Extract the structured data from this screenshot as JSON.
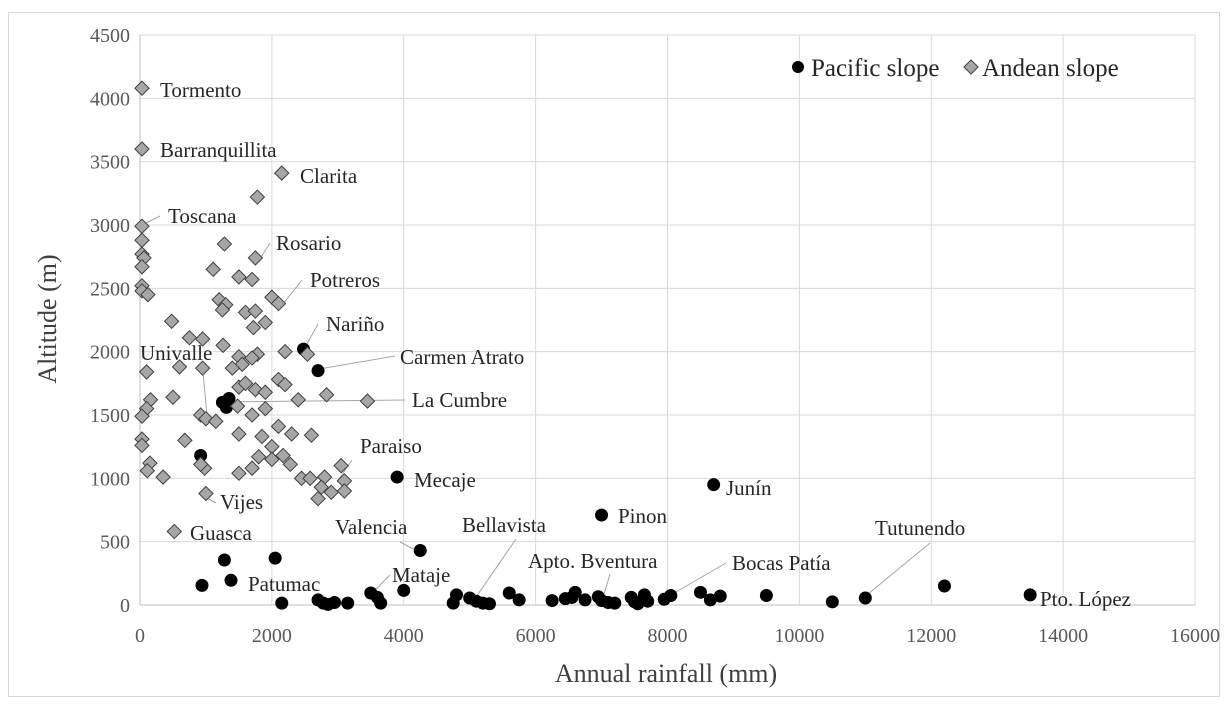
{
  "chart_data": {
    "type": "scatter",
    "xlabel": "Annual rainfall (mm)",
    "ylabel": "Altitude (m)",
    "xlim": [
      0,
      16000
    ],
    "ylim": [
      0,
      4500
    ],
    "x_ticks": [
      0,
      2000,
      4000,
      6000,
      8000,
      10000,
      12000,
      14000,
      16000
    ],
    "y_ticks": [
      0,
      500,
      1000,
      1500,
      2000,
      2500,
      3000,
      3500,
      4000,
      4500
    ],
    "grid": "vertical-and-horizontal",
    "legend_position": "top-right",
    "series": [
      {
        "name": "Pacific slope",
        "marker": "circle",
        "color": "#000000",
        "points": [
          [
            2480,
            2020
          ],
          [
            2700,
            1850
          ],
          [
            3900,
            1010
          ],
          [
            8700,
            950
          ],
          [
            7000,
            710
          ],
          [
            4250,
            430
          ],
          [
            1250,
            1600
          ],
          [
            1310,
            1560
          ],
          [
            1350,
            1630
          ],
          [
            920,
            1180
          ],
          [
            940,
            155
          ],
          [
            1280,
            355
          ],
          [
            1380,
            195
          ],
          [
            2050,
            370
          ],
          [
            2150,
            15
          ],
          [
            2700,
            40
          ],
          [
            2780,
            15
          ],
          [
            2850,
            5
          ],
          [
            2950,
            20
          ],
          [
            3150,
            15
          ],
          [
            3500,
            95
          ],
          [
            3600,
            60
          ],
          [
            3650,
            15
          ],
          [
            4000,
            115
          ],
          [
            4750,
            15
          ],
          [
            4800,
            80
          ],
          [
            5000,
            55
          ],
          [
            5100,
            30
          ],
          [
            5200,
            15
          ],
          [
            5300,
            10
          ],
          [
            5600,
            95
          ],
          [
            5750,
            40
          ],
          [
            6250,
            35
          ],
          [
            6450,
            50
          ],
          [
            6550,
            60
          ],
          [
            6600,
            100
          ],
          [
            6750,
            40
          ],
          [
            6950,
            65
          ],
          [
            7000,
            35
          ],
          [
            7100,
            20
          ],
          [
            7200,
            15
          ],
          [
            7450,
            60
          ],
          [
            7500,
            25
          ],
          [
            7550,
            10
          ],
          [
            7650,
            80
          ],
          [
            7700,
            30
          ],
          [
            7950,
            45
          ],
          [
            8050,
            75
          ],
          [
            8500,
            100
          ],
          [
            8650,
            40
          ],
          [
            8800,
            70
          ],
          [
            9500,
            75
          ],
          [
            10500,
            25
          ],
          [
            11000,
            55
          ],
          [
            12200,
            150
          ],
          [
            13500,
            80
          ]
        ]
      },
      {
        "name": "Andean slope",
        "marker": "diamond",
        "color": "#a6a6a6",
        "points": [
          [
            30,
            4080
          ],
          [
            30,
            3600
          ],
          [
            2150,
            3410
          ],
          [
            1780,
            3220
          ],
          [
            30,
            2990
          ],
          [
            30,
            2880
          ],
          [
            30,
            2770
          ],
          [
            60,
            2740
          ],
          [
            30,
            2670
          ],
          [
            30,
            2520
          ],
          [
            30,
            2480
          ],
          [
            120,
            2450
          ],
          [
            1280,
            2850
          ],
          [
            1750,
            2740
          ],
          [
            1110,
            2650
          ],
          [
            1500,
            2590
          ],
          [
            1700,
            2570
          ],
          [
            2000,
            2430
          ],
          [
            2100,
            2380
          ],
          [
            1200,
            2410
          ],
          [
            1300,
            2370
          ],
          [
            1250,
            2330
          ],
          [
            1600,
            2310
          ],
          [
            1750,
            2320
          ],
          [
            1900,
            2230
          ],
          [
            1720,
            2190
          ],
          [
            480,
            2240
          ],
          [
            750,
            2110
          ],
          [
            950,
            2100
          ],
          [
            1260,
            2050
          ],
          [
            1780,
            1980
          ],
          [
            2200,
            2000
          ],
          [
            2540,
            1980
          ],
          [
            1500,
            1960
          ],
          [
            1700,
            1950
          ],
          [
            1550,
            1900
          ],
          [
            100,
            1840
          ],
          [
            600,
            1880
          ],
          [
            950,
            1870
          ],
          [
            1400,
            1870
          ],
          [
            2100,
            1780
          ],
          [
            2200,
            1740
          ],
          [
            1500,
            1720
          ],
          [
            1750,
            1700
          ],
          [
            1900,
            1680
          ],
          [
            1600,
            1750
          ],
          [
            2830,
            1660
          ],
          [
            3450,
            1610
          ],
          [
            2400,
            1620
          ],
          [
            160,
            1620
          ],
          [
            500,
            1640
          ],
          [
            100,
            1550
          ],
          [
            30,
            1490
          ],
          [
            920,
            1500
          ],
          [
            1000,
            1470
          ],
          [
            1150,
            1450
          ],
          [
            1480,
            1570
          ],
          [
            1700,
            1500
          ],
          [
            1900,
            1550
          ],
          [
            2100,
            1410
          ],
          [
            1500,
            1350
          ],
          [
            1850,
            1330
          ],
          [
            2300,
            1350
          ],
          [
            2600,
            1340
          ],
          [
            30,
            1310
          ],
          [
            30,
            1260
          ],
          [
            680,
            1300
          ],
          [
            2000,
            1250
          ],
          [
            2170,
            1180
          ],
          [
            1800,
            1170
          ],
          [
            2280,
            1110
          ],
          [
            150,
            1120
          ],
          [
            110,
            1060
          ],
          [
            350,
            1010
          ],
          [
            980,
            1080
          ],
          [
            920,
            1110
          ],
          [
            1500,
            1040
          ],
          [
            1700,
            1080
          ],
          [
            2000,
            1150
          ],
          [
            2450,
            1000
          ],
          [
            2580,
            1000
          ],
          [
            2800,
            1010
          ],
          [
            2750,
            930
          ],
          [
            2900,
            890
          ],
          [
            3050,
            1100
          ],
          [
            3100,
            980
          ],
          [
            3100,
            900
          ],
          [
            2700,
            840
          ],
          [
            1000,
            880
          ],
          [
            520,
            580
          ]
        ]
      }
    ],
    "annotations": [
      {
        "text": "Tormento",
        "x": 30,
        "y": 4080
      },
      {
        "text": "Barranquillita",
        "x": 30,
        "y": 3600
      },
      {
        "text": "Clarita",
        "x": 2150,
        "y": 3410
      },
      {
        "text": "Toscana",
        "x": 30,
        "y": 2990
      },
      {
        "text": "Rosario",
        "x": 1750,
        "y": 2740
      },
      {
        "text": "Potreros",
        "x": 2100,
        "y": 2380
      },
      {
        "text": "Nariño",
        "x": 2480,
        "y": 2020
      },
      {
        "text": "Carmen Atrato",
        "x": 2700,
        "y": 1850
      },
      {
        "text": "Univalle",
        "x": 1000,
        "y": 1470
      },
      {
        "text": "La Cumbre",
        "x": 1250,
        "y": 1600
      },
      {
        "text": "Paraiso",
        "x": 3050,
        "y": 1100
      },
      {
        "text": "Mecaje",
        "x": 3900,
        "y": 1010
      },
      {
        "text": "Vijes",
        "x": 1000,
        "y": 880
      },
      {
        "text": "Junín",
        "x": 8700,
        "y": 950
      },
      {
        "text": "Pinon",
        "x": 7000,
        "y": 710
      },
      {
        "text": "Guasca",
        "x": 520,
        "y": 580
      },
      {
        "text": "Valencia",
        "x": 4250,
        "y": 430
      },
      {
        "text": "Bellavista",
        "x": 5200,
        "y": 15
      },
      {
        "text": "Apto. Bventura",
        "x": 7000,
        "y": 35
      },
      {
        "text": "Tutunendo",
        "x": 11000,
        "y": 55
      },
      {
        "text": "Bocas Patía",
        "x": 8050,
        "y": 75
      },
      {
        "text": "Patumac",
        "x": 1380,
        "y": 195
      },
      {
        "text": "Mataje",
        "x": 3500,
        "y": 95
      },
      {
        "text": "Pto. López",
        "x": 13500,
        "y": 80
      }
    ]
  }
}
